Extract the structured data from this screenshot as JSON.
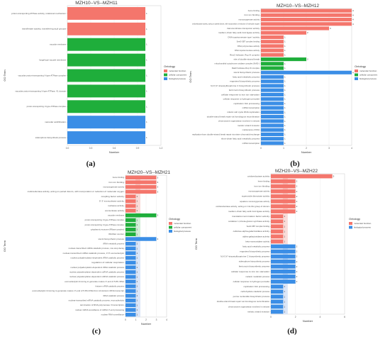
{
  "panel_labels": [
    "(a)",
    "(b)",
    "(c)",
    "(d)"
  ],
  "colors": {
    "molecular_function": "#f4766c",
    "cellular_component": "#1fae3b",
    "biological_process": "#3b8ee6",
    "pale_molecular_function": "#fadcd9",
    "pale_cellular_component": "#d3eed8",
    "pale_biological_process": "#dbe6f8",
    "grid": "#e6e6e6",
    "axis": "#bbbbbb"
  },
  "chart_data": [
    {
      "type": "bar",
      "orientation": "horizontal",
      "title": "MZH10--VS--MZH11",
      "xlabel": "Number",
      "ylabel": "GO Term",
      "xlim": [
        0,
        1.2
      ],
      "xticks": [
        "0.0",
        "0.3",
        "0.6",
        "0.9",
        "1.2"
      ],
      "legend": {
        "title": "Ontology",
        "position": "right",
        "entries": [
          "molecular function",
          "cellular component",
          "biological process"
        ]
      },
      "categories": [
        "proton-transporting ATPase activity, rotational mechanism",
        "transferase activity, transferring acyl groups",
        "vacuolar membrane",
        "fungal-type vacuole membrane",
        "vacuolar proton-transporting V-type ATPase complex",
        "vacuolar proton-transporting V-type ATPase, V1 domain",
        "proton-transporting V-type ATPase complex",
        "vacuolar acidification",
        "siderophore biosynthetic process"
      ],
      "values": [
        1,
        1,
        1,
        1,
        1,
        1,
        1,
        1,
        1
      ],
      "ontology": [
        "MF",
        "MF",
        "CC",
        "CC",
        "CC",
        "CC",
        "CC",
        "BP",
        "BP"
      ]
    },
    {
      "type": "bar",
      "orientation": "horizontal",
      "title": "MZH10--VS--MZH12",
      "xlabel": "Number",
      "ylabel": "GO Term",
      "xlim": [
        0,
        4
      ],
      "xticks": [
        "0",
        "1",
        "2",
        "3",
        "4"
      ],
      "legend": {
        "title": "Ontology",
        "position": "right",
        "entries": [
          "molecular function",
          "cellular component",
          "biological process"
        ]
      },
      "categories": [
        "heme binding",
        "iron ion binding",
        "monooxygenase activity",
        "oxidoreductase activity, acting on paired donors, with incorporation or reduction of molecular oxygen",
        "transmembrane transporter activity",
        "medium-chain fatty acid-CoA ligase activity",
        "DNA topoisomerase type I activity",
        "SeeS-SBT complex binding",
        "DNA polymerase activity",
        "DNA topoisomerase activity",
        "Rec/2 helicase, Rup III complex",
        "site of double-strand break",
        "mitochondrial cytochrome oxidase complex (NAD-)",
        "Rad2 helicase-Rup III complex",
        "sterol biosynthetic process",
        "fatty acid metabolic process",
        "ergosterol biosynthetic process",
        "N,N',N''-triacetylfusarinine C biosynthetic process",
        "ferricrocin biosynthetic process",
        "cellular response to iron ion starvation",
        "cellular response to hydrogen peroxide",
        "replication fork processing",
        "mRNA transcription",
        "mitotic cell cycle DNA replication",
        "double-strand break repair via homologous recombination",
        "chromosome organization involved in meiosis",
        "meiotic strand invasion",
        "maintenance of DNA",
        "replication-born double-strand break repair via sister chromatid exchange",
        "short-chain fatty acid metabolic process",
        "mRNA transcription"
      ],
      "values": [
        4,
        4,
        4,
        4,
        3,
        2,
        1,
        1,
        1,
        1,
        1,
        2,
        1,
        1,
        4,
        1,
        1,
        1,
        1,
        1,
        1,
        1,
        1,
        1,
        1,
        1,
        1,
        1,
        1,
        1,
        1
      ],
      "ontology": [
        "MF",
        "MF",
        "MF",
        "MF",
        "MF",
        "MF",
        "MF",
        "MF",
        "MF",
        "MF",
        "MF",
        "CC",
        "CC",
        "CC",
        "BP",
        "BP",
        "BP",
        "BP",
        "BP",
        "BP",
        "BP",
        "BP",
        "BP",
        "BP",
        "BP",
        "BP",
        "BP",
        "BP",
        "BP",
        "BP",
        "BP"
      ]
    },
    {
      "type": "bar",
      "orientation": "horizontal",
      "title": "MZH20--VS--MZH21",
      "xlabel": "Number",
      "ylabel": "GO Term",
      "xlim": [
        0,
        4
      ],
      "xticks": [
        "0",
        "1",
        "2",
        "3",
        "4"
      ],
      "legend": {
        "title": "Ontology",
        "position": "right",
        "entries": [
          "molecular function",
          "cellular component",
          "biological process"
        ]
      },
      "categories": [
        "heme binding",
        "iron ion binding",
        "monooxygenase activity",
        "oxidoreductase activity, acting on paired donors, with incorporation or reduction of molecular oxygen",
        "coupling factor activity",
        "5'-3' exonuclease activity",
        "nuclease activity",
        "exonuclease activity",
        "vacuolar membrane",
        "proton-transporting V-type ATPase complex",
        "proton-transporting V-type ATPase complex",
        "cytoplasmic exosome (RNase complex)",
        "fibrillar center",
        "sterol biosynthetic process",
        "tRNA metabolic process",
        "nuclear-transcribed mRNA catabolic process, non-stop decay",
        "nuclear-transcribed mRNA catabolic process, 3'-5' exonucleolytic",
        "nuclear polyadenylation-dependent tRNA catabolic process",
        "regulation of cellular respiration",
        "nuclear polyadenylation-dependent rRNA catabolic process",
        "nuclear polyadenylation-dependent ncRNA catabolic process",
        "nuclear polyadenylation-dependent snRNA catabolic process",
        "exonucleolytic trimming to generate mature 3'-end of 5.8S rRNA",
        "histone mRNA catabolic process",
        "exonucleolytic trimming to generate mature 3'-end of 5.8S rRNA from tricistronic rRNA transcript",
        "rRNA catabolic process",
        "nuclear-transcribed mRNA catabolic process, exonucleolytic",
        "termination of RNA polymerase II transcription",
        "nuclear mRNA surveillance of mRNA 3'-end processing",
        "nuclear RNA surveillance"
      ],
      "values": [
        3,
        3,
        3,
        3,
        1,
        1,
        1,
        1,
        3,
        1,
        1,
        1,
        1,
        3,
        1,
        1,
        1,
        1,
        1,
        1,
        1,
        1,
        1,
        1,
        1,
        1,
        1,
        1,
        1,
        1
      ],
      "ontology": [
        "MF",
        "MF",
        "MF",
        "MF",
        "MF",
        "MF",
        "MF",
        "MF",
        "CC",
        "CC",
        "CC",
        "CC",
        "CC",
        "BP",
        "BP",
        "BP",
        "BP",
        "BP",
        "BP",
        "BP",
        "BP",
        "BP",
        "BP",
        "BP",
        "BP",
        "BP",
        "BP",
        "BP",
        "BP",
        "BP"
      ]
    },
    {
      "type": "bar",
      "orientation": "horizontal",
      "title": "MZH20--VS--MZH22",
      "xlabel": "Number",
      "ylabel": "GO Term",
      "xlim": [
        0,
        6
      ],
      "xticks": [
        "0",
        "2",
        "4",
        "6"
      ],
      "legend": {
        "title": "Ontology",
        "position": "right",
        "entries": [
          "molecular function",
          "biological process"
        ]
      },
      "categories": [
        "oxidoreductase activity",
        "heme binding",
        "iron ion binding",
        "monooxygenase activity",
        "superoxide dismutase activity",
        "squalene monooxygenase activity",
        "oxidoreductase activity, acting on CH-OH group of donors",
        "medium-chain fatty acid-CoA ligase activity",
        "translation termination factor activity",
        "oxidative 1,3-beta-glucan synthase activity",
        "SeeS-SBT complex binding",
        "cellulose-alpha-galactosidase activity",
        "alpha-galactosidase activity",
        "beta-mannosidase activity",
        "fatty acid metabolic process",
        "ergosterol biosynthetic process",
        "N,N',N''-triacetylfusarinine C biosynthetic process",
        "siderophore biosynthetic process",
        "ferricrocin biosynthetic process",
        "cellular response to iron ion starvation",
        "melanin metabolic process",
        "cellular response to hydrogen peroxide",
        "replication fork processing",
        "carbohydrate catabolic process",
        "purine nucleotide biosynthetic process",
        "double-strand break repair via homologous recombination",
        "chromosome organization involved in meiosis",
        "meiotic strand invasion"
      ],
      "values": [
        5,
        2,
        2,
        2,
        2,
        2,
        2,
        2,
        1,
        1,
        1,
        1,
        1,
        1,
        2,
        2,
        2,
        2,
        2,
        2,
        2,
        2,
        1,
        1,
        1,
        1,
        1,
        1
      ],
      "ontology": [
        "MF",
        "MF",
        "MF",
        "MF",
        "MF",
        "MF",
        "MF",
        "MF",
        "MF",
        "MF",
        "MF",
        "MF",
        "MF",
        "MF",
        "BP",
        "BP",
        "BP",
        "BP",
        "BP",
        "BP",
        "BP",
        "BP",
        "BP",
        "BP",
        "BP",
        "BP",
        "BP",
        "BP"
      ]
    }
  ]
}
